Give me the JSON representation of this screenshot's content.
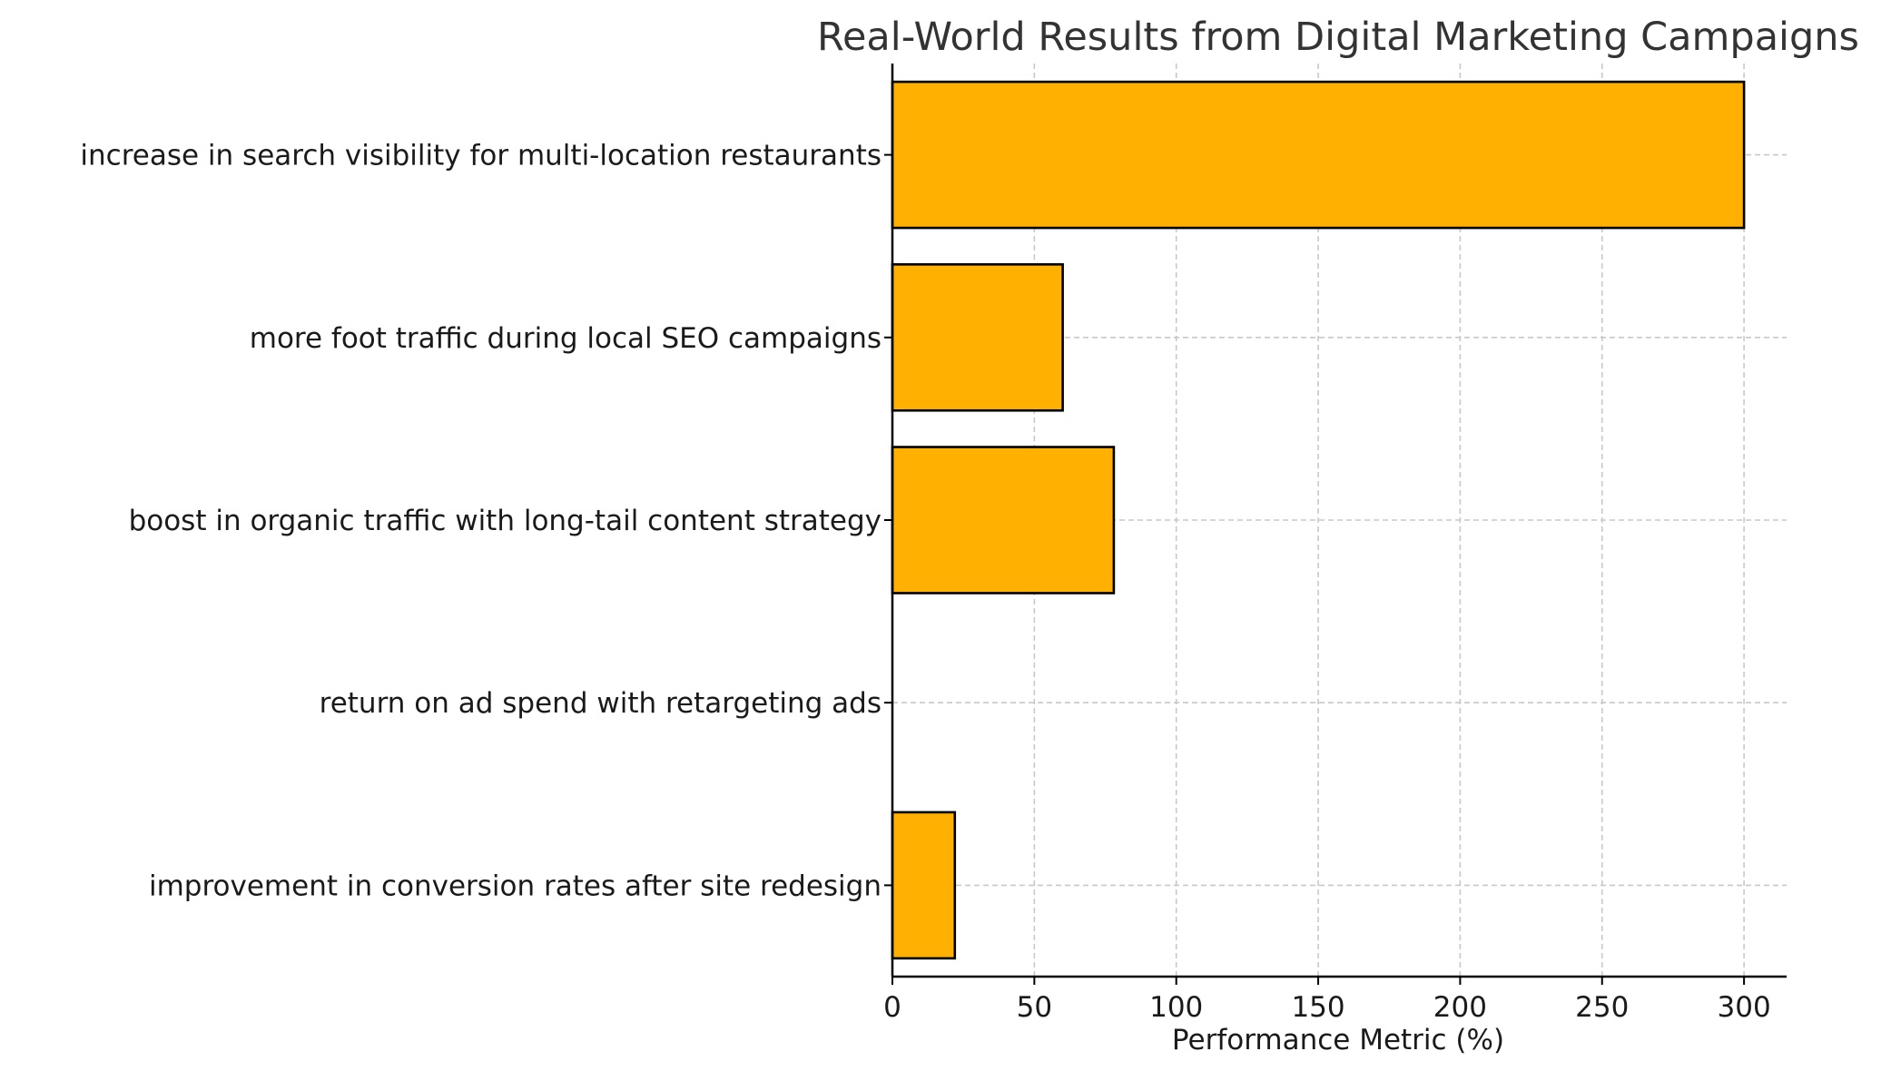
{
  "chart_data": {
    "type": "bar",
    "orientation": "horizontal",
    "title": "Real-World Results from Digital Marketing Campaigns",
    "xlabel": "Performance Metric (%)",
    "ylabel": "",
    "categories": [
      "improvement in conversion rates after site redesign",
      "return on ad spend with retargeting ads",
      "boost in organic traffic with long-tail content strategy",
      "more foot traffic during local SEO campaigns",
      "increase in search visibility for multi-location restaurants"
    ],
    "values": [
      22,
      0,
      78,
      60,
      300
    ],
    "xlim": [
      0,
      315
    ],
    "xticks": [
      "0",
      "50",
      "100",
      "150",
      "200",
      "250",
      "300"
    ],
    "xtick_values": [
      0,
      50,
      100,
      150,
      200,
      250,
      300
    ],
    "grid": true,
    "bar_color": "#FFB000",
    "edge_color": "#000000"
  }
}
